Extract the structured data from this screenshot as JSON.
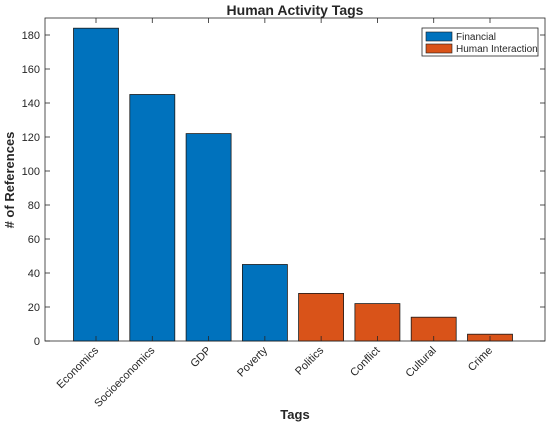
{
  "chart_data": {
    "type": "bar",
    "title": "Human Activity Tags",
    "xlabel": "Tags",
    "ylabel": "# of References",
    "categories": [
      "Economics",
      "Socioeconomics",
      "GDP",
      "Poverty",
      "Politics",
      "Conflict",
      "Cultural",
      "Crime"
    ],
    "series": [
      {
        "name": "Financial",
        "color": "#0072BD",
        "values": [
          184,
          145,
          122,
          45,
          null,
          null,
          null,
          null
        ]
      },
      {
        "name": "Human Interaction",
        "color": "#D95319",
        "values": [
          null,
          null,
          null,
          null,
          28,
          22,
          14,
          4
        ]
      }
    ],
    "ylim": [
      0,
      190
    ],
    "yticks": [
      0,
      20,
      40,
      60,
      80,
      100,
      120,
      140,
      160,
      180
    ],
    "grid": false,
    "legend_position": "top-right"
  }
}
